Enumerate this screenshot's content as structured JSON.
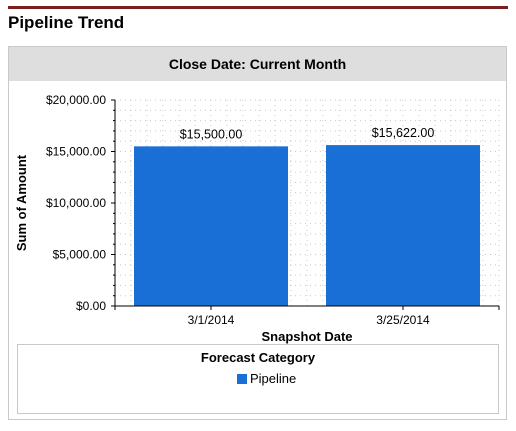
{
  "page": {
    "title": "Pipeline Trend"
  },
  "colors": {
    "title_rule": "#7a1f1f",
    "header_bg": "#dedede",
    "bar": "#1a6fd6",
    "grid": "#c8c8c8"
  },
  "chart_data": {
    "type": "bar",
    "title": "Close Date: Current Month",
    "xlabel": "Snapshot Date",
    "ylabel": "Sum of Amount",
    "categories": [
      "3/1/2014",
      "3/25/2014"
    ],
    "series": [
      {
        "name": "Pipeline",
        "values": [
          15500,
          15622
        ],
        "labels": [
          "$15,500.00",
          "$15,622.00"
        ],
        "color": "#1a6fd6"
      }
    ],
    "ylim": [
      0,
      20000
    ],
    "y_ticks": [
      0,
      5000,
      10000,
      15000,
      20000
    ],
    "y_tick_labels": [
      "$0.00",
      "$5,000.00",
      "$10,000.00",
      "$15,000.00",
      "$20,000.00"
    ],
    "grid": true,
    "legend": {
      "title": "Forecast Category",
      "placement": "bottom"
    }
  }
}
